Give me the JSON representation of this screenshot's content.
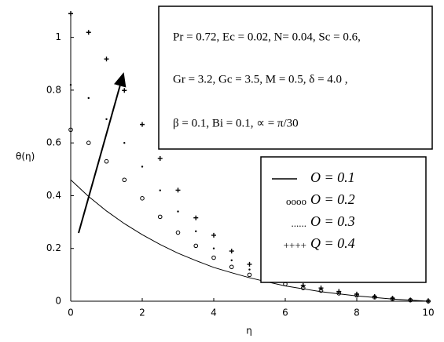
{
  "chart_data": {
    "type": "line",
    "x_label": "η",
    "y_label": "θ(η)",
    "annotation_lines": [
      "Pr = 0.72, Ec = 0.02, N= 0.04, Sc = 0.6,",
      "Gr = 3.2, Gc = 3.5, M = 0.5, δ = 4.0 ,",
      "β = 0.1, Bi = 0.1, ∝ = π/30"
    ],
    "x": [
      0,
      0.5,
      1,
      1.5,
      2,
      2.5,
      3,
      3.5,
      4,
      4.5,
      5,
      5.5,
      6,
      6.5,
      7,
      7.5,
      8,
      8.5,
      9,
      9.5,
      10
    ],
    "series": [
      {
        "name": "O = 0.1",
        "color": "#000000",
        "marker": "none",
        "values": [
          0.46,
          0.397,
          0.342,
          0.294,
          0.252,
          0.215,
          0.182,
          0.154,
          0.128,
          0.108,
          0.089,
          0.073,
          0.058,
          0.047,
          0.036,
          0.028,
          0.02,
          0.014,
          0.008,
          0.004,
          0
        ]
      },
      {
        "name": "O = 0.2",
        "color": "#000000",
        "marker": "circle",
        "values": [
          0.65,
          0.6,
          0.53,
          0.46,
          0.39,
          0.32,
          0.26,
          0.21,
          0.165,
          0.13,
          0.1,
          0.08,
          0.065,
          0.05,
          0.04,
          0.03,
          0.022,
          0.015,
          0.009,
          0.004,
          0
        ]
      },
      {
        "name": "O = 0.3",
        "color": "#000000",
        "marker": "dot",
        "values": [
          0.82,
          0.77,
          0.69,
          0.6,
          0.51,
          0.42,
          0.34,
          0.265,
          0.2,
          0.155,
          0.12,
          0.095,
          0.072,
          0.056,
          0.044,
          0.033,
          0.024,
          0.016,
          0.01,
          0.005,
          0
        ]
      },
      {
        "name": "Q = 0.4",
        "color": "#000000",
        "marker": "plus",
        "values": [
          1.09,
          1.019,
          0.918,
          0.799,
          0.67,
          0.541,
          0.421,
          0.316,
          0.25,
          0.19,
          0.14,
          0.11,
          0.08,
          0.06,
          0.05,
          0.037,
          0.027,
          0.018,
          0.011,
          0.005,
          0
        ]
      }
    ],
    "legend_symbols": [
      "oooo",
      "......",
      "++++"
    ],
    "xlim": [
      0,
      10
    ],
    "ylim": [
      0,
      1.1
    ],
    "xticks": [
      0,
      2,
      4,
      6,
      8,
      10
    ],
    "yticks": [
      0,
      0.2,
      0.4,
      0.6,
      0.8,
      1
    ],
    "legend_position": "right"
  }
}
